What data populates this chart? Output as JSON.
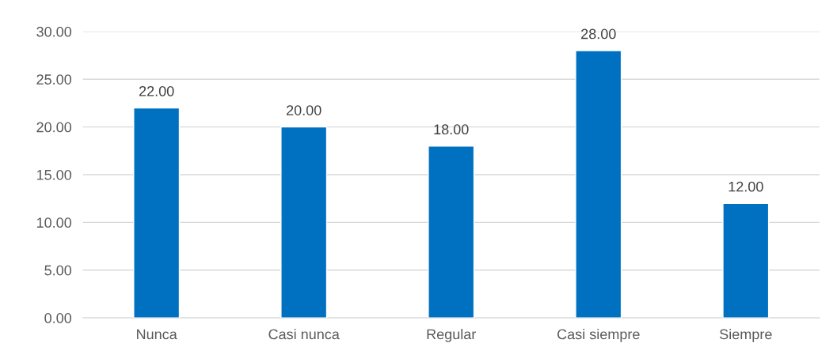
{
  "chart_data": {
    "type": "bar",
    "categories": [
      "Nunca",
      "Casi nunca",
      "Regular",
      "Casi siempre",
      "Siempre"
    ],
    "values": [
      22,
      20,
      18,
      28,
      12
    ],
    "color": "#0070c0",
    "value_labels": [
      "22.00",
      "20.00",
      "18.00",
      "28.00",
      "12.00"
    ],
    "ylim": [
      0,
      30
    ],
    "yticks": [
      {
        "value": 0,
        "label": "0.00"
      },
      {
        "value": 5,
        "label": "5.00"
      },
      {
        "value": 10,
        "label": "10.00"
      },
      {
        "value": 15,
        "label": "15.00"
      },
      {
        "value": 20,
        "label": "20.00"
      },
      {
        "value": 25,
        "label": "25.00"
      },
      {
        "value": 30,
        "label": "30.00"
      }
    ],
    "grid": "y",
    "legend": false
  }
}
